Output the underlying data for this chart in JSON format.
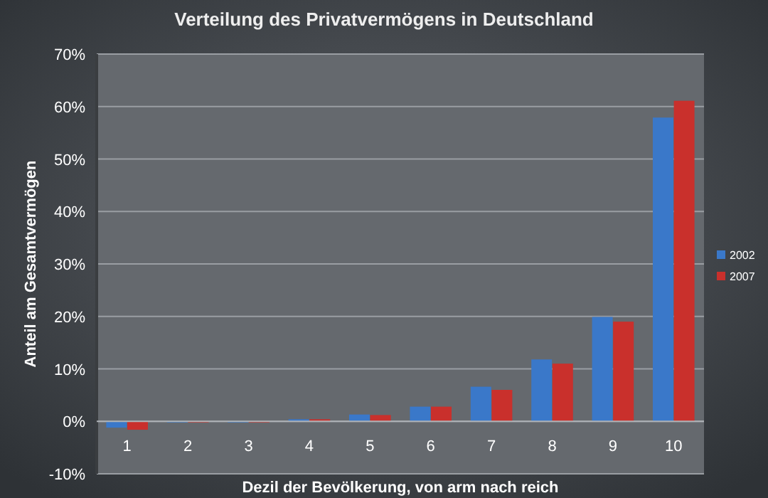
{
  "chart_data": {
    "type": "bar",
    "title": "Verteilung des Privatvermögens in Deutschland",
    "xlabel": "Dezil der Bevölkerung, von arm nach reich",
    "ylabel": "Anteil am Gesamtvermögen",
    "categories": [
      "1",
      "2",
      "3",
      "4",
      "5",
      "6",
      "7",
      "8",
      "9",
      "10"
    ],
    "series": [
      {
        "name": "2002",
        "color": "#3a78c9",
        "values": [
          -1.2,
          0,
          0,
          0.4,
          1.3,
          2.8,
          6.6,
          11.8,
          19.9,
          57.9
        ]
      },
      {
        "name": "2007",
        "color": "#c9302c",
        "values": [
          -1.6,
          0,
          0,
          0.4,
          1.2,
          2.8,
          6.0,
          11.0,
          19.0,
          61.1
        ]
      }
    ],
    "ylim": [
      -10,
      70
    ],
    "yticks": [
      {
        "value": -10,
        "label": "-10%"
      },
      {
        "value": 0,
        "label": "0%"
      },
      {
        "value": 10,
        "label": "10%"
      },
      {
        "value": 20,
        "label": "20%"
      },
      {
        "value": 30,
        "label": "30%"
      },
      {
        "value": 40,
        "label": "40%"
      },
      {
        "value": 50,
        "label": "50%"
      },
      {
        "value": 60,
        "label": "60%"
      },
      {
        "value": 70,
        "label": "70%"
      }
    ],
    "grid": "y",
    "legend": "right"
  }
}
